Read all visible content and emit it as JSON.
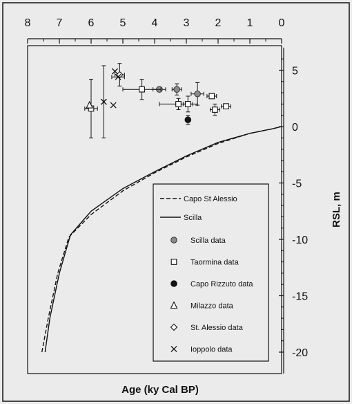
{
  "chart_data": {
    "type": "scatter",
    "xlabel": "Age (ky Cal BP)",
    "ylabel": "RSL, m",
    "xlim": [
      8,
      0
    ],
    "ylim": [
      -20,
      7
    ],
    "x_ticks": [
      8,
      7,
      6,
      5,
      4,
      3,
      2,
      1,
      0
    ],
    "y_ticks": [
      5,
      0,
      -5,
      -10,
      -15,
      -20
    ],
    "y_tick_labels": [
      "5",
      "0",
      "-5",
      "-10",
      "-15",
      "-20"
    ],
    "grid": false,
    "x_axis_position": "top",
    "y_axis_position": "right",
    "legend_position": "bottom-right",
    "curves": [
      {
        "name": "Capo St Alessio",
        "style": "dashed",
        "color": "#111111",
        "x": [
          7.55,
          7.35,
          7.05,
          6.7,
          6.0,
          5.0,
          4.0,
          3.0,
          2.0,
          1.0,
          0.3,
          0.0
        ],
        "y": [
          -20,
          -17,
          -13,
          -9.8,
          -7.8,
          -5.7,
          -4.1,
          -2.7,
          -1.5,
          -0.6,
          -0.2,
          0
        ]
      },
      {
        "name": "Scilla",
        "style": "solid",
        "color": "#111111",
        "x": [
          7.45,
          7.3,
          7.0,
          6.65,
          6.0,
          5.0,
          4.0,
          3.0,
          2.0,
          1.0,
          0.3,
          0.0
        ],
        "y": [
          -20,
          -17,
          -13,
          -9.6,
          -7.5,
          -5.5,
          -4.0,
          -2.6,
          -1.4,
          -0.6,
          -0.2,
          0
        ]
      }
    ],
    "series": [
      {
        "name": "Scilla data",
        "marker": "circle-gray",
        "points": [
          {
            "x": 3.85,
            "y": 3.3,
            "xerr": 0.2,
            "yerr": 0
          },
          {
            "x": 3.3,
            "y": 3.3,
            "xerr": 0.15,
            "yerr": 0.5
          },
          {
            "x": 2.65,
            "y": 2.9,
            "xerr": 0.2,
            "yerr": 1.0
          }
        ]
      },
      {
        "name": "Taormina data",
        "marker": "square-open",
        "points": [
          {
            "x": 6.0,
            "y": 1.6,
            "xerr": 0.2,
            "yerr": 2.6
          },
          {
            "x": 4.4,
            "y": 3.3,
            "xerr": 0.6,
            "yerr": 0.9
          },
          {
            "x": 3.25,
            "y": 2.0,
            "xerr": 0.6,
            "yerr": 0.5
          },
          {
            "x": 2.95,
            "y": 2.0,
            "xerr": 0.15,
            "yerr": 0.7
          },
          {
            "x": 2.2,
            "y": 2.7,
            "xerr": 0.15,
            "yerr": 0
          },
          {
            "x": 2.1,
            "y": 1.5,
            "xerr": 0.15,
            "yerr": 0.5
          },
          {
            "x": 1.75,
            "y": 1.8,
            "xerr": 0.15,
            "yerr": 0
          }
        ]
      },
      {
        "name": "Capo Rizzuto data",
        "marker": "circle-filled",
        "points": [
          {
            "x": 2.95,
            "y": 0.6,
            "xerr": 0,
            "yerr": 0.4
          }
        ]
      },
      {
        "name": "Milazzo data",
        "marker": "triangle-open",
        "points": [
          {
            "x": 6.05,
            "y": 1.9,
            "xerr": 0,
            "yerr": 0
          }
        ]
      },
      {
        "name": "St. Alessio data",
        "marker": "diamond-open",
        "points": [
          {
            "x": 5.1,
            "y": 4.6,
            "xerr": 0.15,
            "yerr": 1.0
          }
        ]
      },
      {
        "name": "Ioppolo data",
        "marker": "cross",
        "points": [
          {
            "x": 5.6,
            "y": 2.2,
            "xerr": 0,
            "yerr": 3.2
          },
          {
            "x": 5.3,
            "y": 1.9,
            "xerr": 0,
            "yerr": 0
          },
          {
            "x": 5.15,
            "y": 4.4,
            "xerr": 0.2,
            "yerr": 0
          },
          {
            "x": 5.25,
            "y": 4.9,
            "xerr": 0,
            "yerr": 0
          }
        ]
      }
    ],
    "legend": {
      "lines": [
        "Capo St Alessio",
        "Scilla"
      ],
      "markers": [
        "Scilla data",
        "Taormina data",
        "Capo Rizzuto data",
        "Milazzo data",
        "St. Alessio data",
        "Ioppolo data"
      ]
    }
  }
}
